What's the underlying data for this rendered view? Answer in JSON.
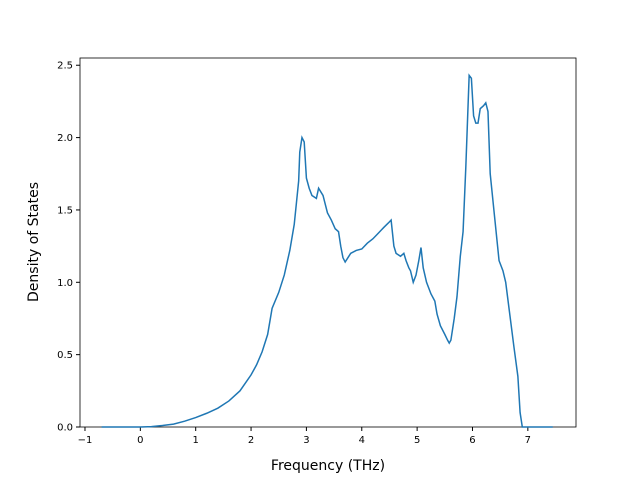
{
  "chart_data": {
    "type": "line",
    "xlabel": "Frequency (THz)",
    "ylabel": "Density of States",
    "xlim": [
      -1.09,
      7.87
    ],
    "ylim": [
      0,
      2.55
    ],
    "xticks": [
      -1,
      0,
      1,
      2,
      3,
      4,
      5,
      6,
      7
    ],
    "yticks": [
      0.0,
      0.5,
      1.0,
      1.5,
      2.0,
      2.5
    ],
    "series": [
      {
        "color": "#1f77b4",
        "x": [
          -0.7,
          0,
          0.2,
          0.4,
          0.6,
          0.8,
          1.0,
          1.2,
          1.4,
          1.6,
          1.8,
          2.0,
          2.1,
          2.2,
          2.3,
          2.38,
          2.5,
          2.6,
          2.7,
          2.78,
          2.82,
          2.86,
          2.88,
          2.92,
          2.96,
          3.0,
          3.05,
          3.1,
          3.18,
          3.22,
          3.3,
          3.38,
          3.45,
          3.52,
          3.58,
          3.62,
          3.66,
          3.7,
          3.75,
          3.8,
          3.9,
          4.0,
          4.1,
          4.2,
          4.3,
          4.4,
          4.48,
          4.53,
          4.58,
          4.62,
          4.7,
          4.76,
          4.8,
          4.85,
          4.88,
          4.93,
          4.98,
          5.03,
          5.07,
          5.11,
          5.17,
          5.25,
          5.32,
          5.36,
          5.42,
          5.5,
          5.55,
          5.58,
          5.61,
          5.67,
          5.72,
          5.78,
          5.83,
          5.88,
          5.94,
          5.98,
          6.02,
          6.06,
          6.1,
          6.14,
          6.2,
          6.24,
          6.28,
          6.32,
          6.4,
          6.48,
          6.55,
          6.6,
          6.65,
          6.7,
          6.75,
          6.82,
          6.86,
          6.9,
          7.45
        ],
        "values": [
          0,
          0,
          0.003,
          0.01,
          0.02,
          0.04,
          0.065,
          0.095,
          0.13,
          0.18,
          0.25,
          0.36,
          0.43,
          0.52,
          0.64,
          0.82,
          0.93,
          1.05,
          1.22,
          1.4,
          1.55,
          1.7,
          1.9,
          2.0,
          1.97,
          1.72,
          1.65,
          1.6,
          1.58,
          1.65,
          1.6,
          1.48,
          1.43,
          1.37,
          1.35,
          1.25,
          1.17,
          1.14,
          1.17,
          1.2,
          1.22,
          1.23,
          1.27,
          1.3,
          1.34,
          1.38,
          1.41,
          1.43,
          1.25,
          1.2,
          1.18,
          1.2,
          1.15,
          1.1,
          1.08,
          1.0,
          1.05,
          1.15,
          1.24,
          1.1,
          1.0,
          0.92,
          0.87,
          0.78,
          0.7,
          0.64,
          0.6,
          0.58,
          0.6,
          0.75,
          0.9,
          1.18,
          1.35,
          1.8,
          2.43,
          2.41,
          2.15,
          2.1,
          2.1,
          2.2,
          2.22,
          2.24,
          2.18,
          1.75,
          1.45,
          1.15,
          1.08,
          1.0,
          0.85,
          0.7,
          0.55,
          0.35,
          0.1,
          0,
          0
        ]
      }
    ]
  }
}
